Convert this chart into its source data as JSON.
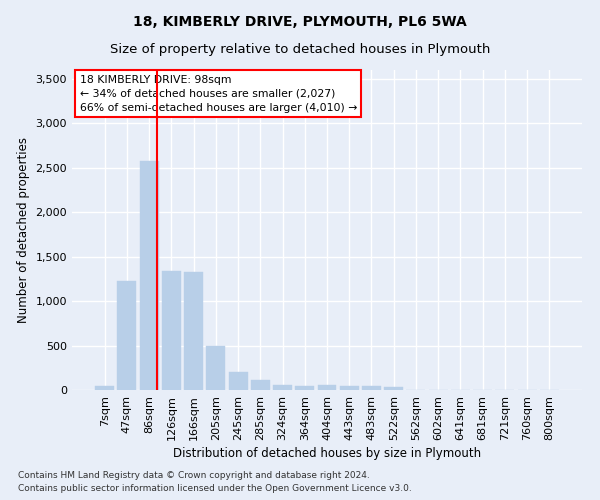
{
  "title": "18, KIMBERLY DRIVE, PLYMOUTH, PL6 5WA",
  "subtitle": "Size of property relative to detached houses in Plymouth",
  "xlabel": "Distribution of detached houses by size in Plymouth",
  "ylabel": "Number of detached properties",
  "bar_labels": [
    "7sqm",
    "47sqm",
    "86sqm",
    "126sqm",
    "166sqm",
    "205sqm",
    "245sqm",
    "285sqm",
    "324sqm",
    "364sqm",
    "404sqm",
    "443sqm",
    "483sqm",
    "522sqm",
    "562sqm",
    "602sqm",
    "641sqm",
    "681sqm",
    "721sqm",
    "760sqm",
    "800sqm"
  ],
  "bar_values": [
    50,
    1230,
    2580,
    1340,
    1330,
    500,
    200,
    110,
    55,
    50,
    55,
    50,
    50,
    30,
    0,
    0,
    0,
    0,
    0,
    0,
    0
  ],
  "bar_color": "#b8cfe8",
  "bar_edgecolor": "#b8cfe8",
  "vline_x": 2.34,
  "vline_color": "red",
  "ylim": [
    0,
    3600
  ],
  "yticks": [
    0,
    500,
    1000,
    1500,
    2000,
    2500,
    3000,
    3500
  ],
  "annotation_text": "18 KIMBERLY DRIVE: 98sqm\n← 34% of detached houses are smaller (2,027)\n66% of semi-detached houses are larger (4,010) →",
  "annotation_box_color": "white",
  "annotation_box_edgecolor": "red",
  "footer1": "Contains HM Land Registry data © Crown copyright and database right 2024.",
  "footer2": "Contains public sector information licensed under the Open Government Licence v3.0.",
  "bg_color": "#e8eef8",
  "grid_color": "#ffffff",
  "title_fontsize": 10,
  "subtitle_fontsize": 9.5,
  "label_fontsize": 8.5,
  "tick_fontsize": 8,
  "footer_fontsize": 6.5
}
